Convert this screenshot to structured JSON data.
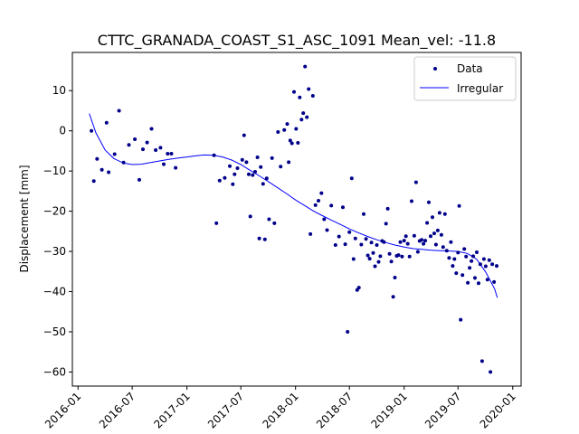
{
  "chart_data": {
    "type": "scatter",
    "title": "CTTC_GRANADA_COAST_S1_ASC_1091    Mean_vel: -11.8",
    "xlabel": "",
    "ylabel": "Displacement [mm]",
    "xlim": [
      "2015-12-13",
      "2020-01-29"
    ],
    "ylim": [
      -63.5,
      19.5
    ],
    "x_ticks": [
      "2016-01-01",
      "2016-07-01",
      "2017-01-01",
      "2017-07-01",
      "2018-01-01",
      "2018-07-01",
      "2019-01-01",
      "2019-07-01",
      "2020-01-01"
    ],
    "x_tick_labels": [
      "2016-01",
      "2016-07",
      "2017-01",
      "2017-07",
      "2018-01",
      "2018-07",
      "2019-01",
      "2019-07",
      "2020-01"
    ],
    "y_ticks": [
      10,
      0,
      -10,
      -20,
      -30,
      -40,
      -50,
      -60
    ],
    "y_tick_labels": [
      "10",
      "0",
      "−10",
      "−20",
      "−30",
      "−40",
      "−50",
      "−60"
    ],
    "legend_position": "top-right",
    "grid": false,
    "colors": {
      "data": "#00008b",
      "fit": "#0000ff"
    },
    "series": [
      {
        "name": "Data",
        "type": "scatter",
        "points": [
          [
            "2016-02-15",
            0
          ],
          [
            "2016-02-23",
            -12.5
          ],
          [
            "2016-03-05",
            -7
          ],
          [
            "2016-03-21",
            -9.7
          ],
          [
            "2016-04-06",
            2
          ],
          [
            "2016-04-13",
            -10.3
          ],
          [
            "2016-05-03",
            -5.8
          ],
          [
            "2016-05-18",
            5
          ],
          [
            "2016-06-02",
            -7.9
          ],
          [
            "2016-06-20",
            -3.5
          ],
          [
            "2016-07-10",
            -2.1
          ],
          [
            "2016-07-25",
            -12.2
          ],
          [
            "2016-08-06",
            -4.6
          ],
          [
            "2016-08-20",
            -2.9
          ],
          [
            "2016-09-04",
            0.5
          ],
          [
            "2016-09-18",
            -4.8
          ],
          [
            "2016-10-04",
            -4.2
          ],
          [
            "2016-10-15",
            -8.3
          ],
          [
            "2016-10-28",
            -5.7
          ],
          [
            "2016-11-10",
            -5.7
          ],
          [
            "2016-11-24",
            -9.2
          ],
          [
            "2017-04-02",
            -6.1
          ],
          [
            "2017-04-10",
            -23
          ],
          [
            "2017-04-21",
            -12.4
          ],
          [
            "2017-05-08",
            -11.7
          ],
          [
            "2017-05-25",
            -8.8
          ],
          [
            "2017-06-04",
            -13.3
          ],
          [
            "2017-06-10",
            -10.8
          ],
          [
            "2017-06-20",
            -9.3
          ],
          [
            "2017-07-06",
            -7.2
          ],
          [
            "2017-07-12",
            -1.1
          ],
          [
            "2017-07-20",
            -7.8
          ],
          [
            "2017-07-28",
            -10.8
          ],
          [
            "2017-08-02",
            -21.3
          ],
          [
            "2017-08-10",
            -11
          ],
          [
            "2017-08-18",
            -10.2
          ],
          [
            "2017-08-26",
            -6.6
          ],
          [
            "2017-09-01",
            -26.8
          ],
          [
            "2017-09-06",
            -9
          ],
          [
            "2017-09-14",
            -13.2
          ],
          [
            "2017-09-20",
            -27
          ],
          [
            "2017-09-26",
            -11.8
          ],
          [
            "2017-10-04",
            -22
          ],
          [
            "2017-10-14",
            -6.8
          ],
          [
            "2017-10-22",
            -23
          ],
          [
            "2017-11-03",
            -0.3
          ],
          [
            "2017-11-12",
            -8.9
          ],
          [
            "2017-11-24",
            0.2
          ],
          [
            "2017-12-04",
            1.7
          ],
          [
            "2017-12-09",
            -7.8
          ],
          [
            "2017-12-14",
            -2.4
          ],
          [
            "2017-12-20",
            -3.1
          ],
          [
            "2017-12-27",
            9.7
          ],
          [
            "2018-01-03",
            0.5
          ],
          [
            "2018-01-09",
            -3
          ],
          [
            "2018-01-15",
            8.3
          ],
          [
            "2018-01-21",
            2.8
          ],
          [
            "2018-01-27",
            4.4
          ],
          [
            "2018-02-02",
            16
          ],
          [
            "2018-02-08",
            3.4
          ],
          [
            "2018-02-14",
            10.4
          ],
          [
            "2018-02-20",
            -25.7
          ],
          [
            "2018-02-28",
            8.7
          ],
          [
            "2018-03-09",
            -18.5
          ],
          [
            "2018-03-19",
            -17.4
          ],
          [
            "2018-03-29",
            -15.5
          ],
          [
            "2018-04-07",
            -22
          ],
          [
            "2018-04-17",
            -24.7
          ],
          [
            "2018-05-01",
            -18.6
          ],
          [
            "2018-05-15",
            -28.4
          ],
          [
            "2018-05-27",
            -26.3
          ],
          [
            "2018-06-09",
            -19
          ],
          [
            "2018-06-17",
            -28.2
          ],
          [
            "2018-06-25",
            -50
          ],
          [
            "2018-07-01",
            -25.2
          ],
          [
            "2018-07-09",
            -11.8
          ],
          [
            "2018-07-15",
            -31.9
          ],
          [
            "2018-07-21",
            -26.8
          ],
          [
            "2018-07-27",
            -39.6
          ],
          [
            "2018-08-02",
            -39
          ],
          [
            "2018-08-10",
            -28.3
          ],
          [
            "2018-08-18",
            -20.7
          ],
          [
            "2018-08-26",
            -26.9
          ],
          [
            "2018-09-01",
            -31
          ],
          [
            "2018-09-07",
            -31.8
          ],
          [
            "2018-09-13",
            -27.8
          ],
          [
            "2018-09-19",
            -30.4
          ],
          [
            "2018-09-25",
            -33.7
          ],
          [
            "2018-10-01",
            -28.4
          ],
          [
            "2018-10-07",
            -32.6
          ],
          [
            "2018-10-13",
            -31.2
          ],
          [
            "2018-10-19",
            -27.4
          ],
          [
            "2018-10-25",
            -27.7
          ],
          [
            "2018-11-01",
            -23.1
          ],
          [
            "2018-11-07",
            -19.4
          ],
          [
            "2018-11-13",
            -30.6
          ],
          [
            "2018-11-19",
            -32.5
          ],
          [
            "2018-11-25",
            -41.3
          ],
          [
            "2018-12-01",
            -36.5
          ],
          [
            "2018-12-07",
            -31.1
          ],
          [
            "2018-12-13",
            -30.9
          ],
          [
            "2018-12-19",
            -27.7
          ],
          [
            "2018-12-25",
            -31.3
          ],
          [
            "2019-01-01",
            -27.3
          ],
          [
            "2019-01-07",
            -26.2
          ],
          [
            "2019-01-13",
            -28.1
          ],
          [
            "2019-01-19",
            -31.3
          ],
          [
            "2019-01-26",
            -17.5
          ],
          [
            "2019-02-04",
            -26.1
          ],
          [
            "2019-02-10",
            -12.8
          ],
          [
            "2019-02-16",
            -30.1
          ],
          [
            "2019-02-22",
            -27.4
          ],
          [
            "2019-03-01",
            -27.1
          ],
          [
            "2019-03-07",
            -28.1
          ],
          [
            "2019-03-13",
            -27.3
          ],
          [
            "2019-03-19",
            -22.9
          ],
          [
            "2019-03-25",
            -17.8
          ],
          [
            "2019-03-31",
            -26.2
          ],
          [
            "2019-04-06",
            -21.5
          ],
          [
            "2019-04-12",
            -25.5
          ],
          [
            "2019-04-18",
            -28.3
          ],
          [
            "2019-04-24",
            -24.8
          ],
          [
            "2019-04-30",
            -20.4
          ],
          [
            "2019-05-06",
            -25.9
          ],
          [
            "2019-05-12",
            -28.9
          ],
          [
            "2019-05-18",
            -20.7
          ],
          [
            "2019-05-24",
            -29.8
          ],
          [
            "2019-06-01",
            -31.6
          ],
          [
            "2019-06-07",
            -27.7
          ],
          [
            "2019-06-13",
            -33.6
          ],
          [
            "2019-06-19",
            -31.9
          ],
          [
            "2019-06-25",
            -35.4
          ],
          [
            "2019-07-01",
            -30.3
          ],
          [
            "2019-07-05",
            -18.7
          ],
          [
            "2019-07-10",
            -47
          ],
          [
            "2019-07-16",
            -35.9
          ],
          [
            "2019-07-22",
            -29.4
          ],
          [
            "2019-07-28",
            -31.3
          ],
          [
            "2019-08-03",
            -37.8
          ],
          [
            "2019-08-09",
            -34.1
          ],
          [
            "2019-08-15",
            -32.4
          ],
          [
            "2019-08-21",
            -31.2
          ],
          [
            "2019-08-27",
            -36.6
          ],
          [
            "2019-09-02",
            -30.2
          ],
          [
            "2019-09-08",
            -37.9
          ],
          [
            "2019-09-14",
            -33.2
          ],
          [
            "2019-09-20",
            -57.3
          ],
          [
            "2019-09-26",
            -31.9
          ],
          [
            "2019-10-02",
            -33.7
          ],
          [
            "2019-10-08",
            -37
          ],
          [
            "2019-10-14",
            -32.2
          ],
          [
            "2019-10-18",
            -60
          ],
          [
            "2019-10-24",
            -33.2
          ],
          [
            "2019-10-30",
            -37.6
          ],
          [
            "2019-11-08",
            -33.6
          ]
        ]
      },
      {
        "name": "Irregular",
        "type": "line",
        "points": [
          [
            "2016-02-08",
            4.3
          ],
          [
            "2016-03-01",
            -0.5
          ],
          [
            "2016-04-01",
            -4.8
          ],
          [
            "2016-05-01",
            -6.9
          ],
          [
            "2016-06-01",
            -8
          ],
          [
            "2016-07-01",
            -8.4
          ],
          [
            "2016-08-01",
            -8.3
          ],
          [
            "2016-09-01",
            -7.9
          ],
          [
            "2016-10-01",
            -7.5
          ],
          [
            "2016-11-01",
            -7.1
          ],
          [
            "2016-12-01",
            -6.8
          ],
          [
            "2017-01-01",
            -6.5
          ],
          [
            "2017-02-01",
            -6.2
          ],
          [
            "2017-03-01",
            -6
          ],
          [
            "2017-04-01",
            -6.1
          ],
          [
            "2017-05-01",
            -6.5
          ],
          [
            "2017-06-01",
            -7.3
          ],
          [
            "2017-07-01",
            -8.4
          ],
          [
            "2017-08-01",
            -9.8
          ],
          [
            "2017-09-01",
            -11.2
          ],
          [
            "2017-10-01",
            -12.6
          ],
          [
            "2017-11-01",
            -14.1
          ],
          [
            "2017-12-01",
            -15.6
          ],
          [
            "2018-01-01",
            -17.2
          ],
          [
            "2018-02-01",
            -18.6
          ],
          [
            "2018-03-01",
            -19.9
          ],
          [
            "2018-04-01",
            -21.1
          ],
          [
            "2018-05-01",
            -22.2
          ],
          [
            "2018-06-01",
            -23.3
          ],
          [
            "2018-07-01",
            -24.4
          ],
          [
            "2018-08-01",
            -25.4
          ],
          [
            "2018-09-01",
            -26.3
          ],
          [
            "2018-10-01",
            -27.1
          ],
          [
            "2018-11-01",
            -27.8
          ],
          [
            "2018-12-01",
            -28.4
          ],
          [
            "2019-01-01",
            -28.9
          ],
          [
            "2019-02-01",
            -29.3
          ],
          [
            "2019-03-01",
            -29.5
          ],
          [
            "2019-04-01",
            -29.7
          ],
          [
            "2019-05-01",
            -29.8
          ],
          [
            "2019-06-01",
            -29.9
          ],
          [
            "2019-07-01",
            -30
          ],
          [
            "2019-08-01",
            -30.5
          ],
          [
            "2019-09-01",
            -31.9
          ],
          [
            "2019-10-01",
            -35
          ],
          [
            "2019-11-01",
            -39.3
          ],
          [
            "2019-11-10",
            -41.5
          ]
        ]
      }
    ]
  }
}
